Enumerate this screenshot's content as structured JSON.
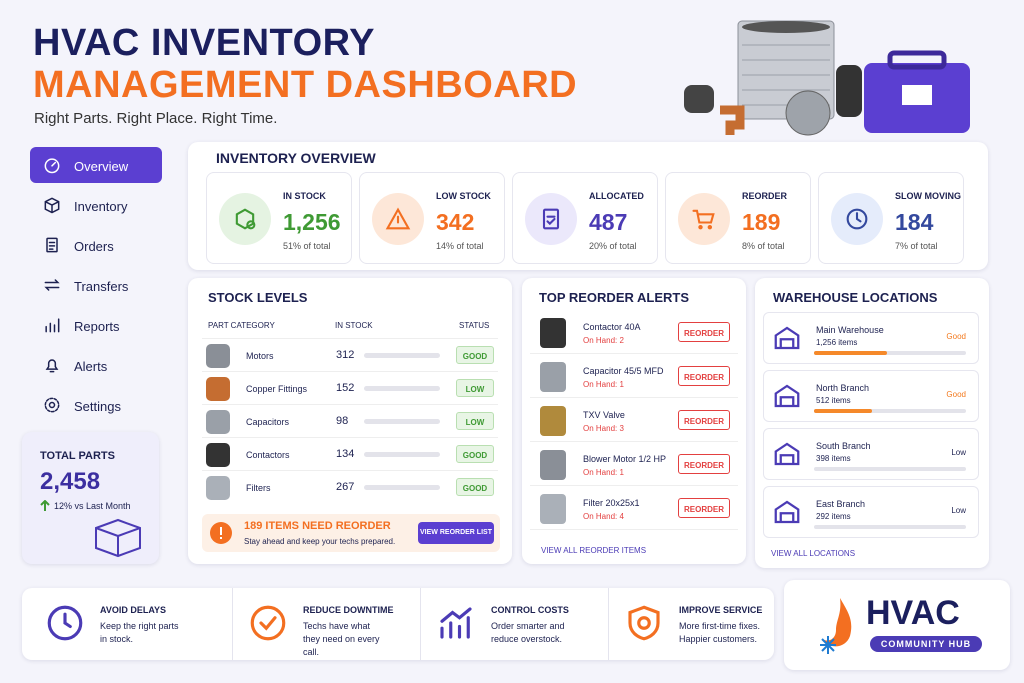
{
  "header": {
    "title_line1": "HVAC INVENTORY",
    "title_line2": "MANAGEMENT DASHBOARD",
    "tagline": "Right Parts. Right Place. Right Time."
  },
  "sidebar": {
    "nav": [
      "Overview",
      "Inventory",
      "Orders",
      "Transfers",
      "Reports",
      "Alerts",
      "Settings"
    ],
    "total_parts": {
      "label": "TOTAL PARTS",
      "value": "2,458",
      "change": "12% vs Last Month"
    }
  },
  "overview": {
    "title": "INVENTORY OVERVIEW",
    "cards": [
      {
        "label": "IN STOCK",
        "value": "1,256",
        "note": "51% of total"
      },
      {
        "label": "LOW STOCK",
        "value": "342",
        "note": "14% of total"
      },
      {
        "label": "ALLOCATED",
        "value": "487",
        "note": "20% of total"
      },
      {
        "label": "REORDER",
        "value": "189",
        "note": "8% of total"
      },
      {
        "label": "SLOW MOVING",
        "value": "184",
        "note": "7% of total"
      }
    ]
  },
  "stock_levels": {
    "title": "STOCK LEVELS",
    "headers": [
      "PART CATEGORY",
      "IN STOCK",
      "STATUS"
    ],
    "rows": [
      {
        "name": "Motors",
        "qty": "312",
        "status": "GOOD"
      },
      {
        "name": "Copper Fittings",
        "qty": "152",
        "status": "LOW"
      },
      {
        "name": "Capacitors",
        "qty": "98",
        "status": "LOW"
      },
      {
        "name": "Contactors",
        "qty": "134",
        "status": "GOOD"
      },
      {
        "name": "Filters",
        "qty": "267",
        "status": "GOOD"
      }
    ],
    "alert": {
      "title": "189 ITEMS NEED REORDER",
      "text": "Stay ahead and keep your techs prepared.",
      "button": "VIEW REORDER LIST"
    }
  },
  "reorder_alerts": {
    "title": "TOP REORDER ALERTS",
    "items": [
      {
        "name": "Contactor 40A",
        "on_hand": "On Hand: 2",
        "button": "REORDER"
      },
      {
        "name": "Capacitor 45/5 MFD",
        "on_hand": "On Hand: 1",
        "button": "REORDER"
      },
      {
        "name": "TXV Valve",
        "on_hand": "On Hand: 3",
        "button": "REORDER"
      },
      {
        "name": "Blower Motor 1/2 HP",
        "on_hand": "On Hand: 1",
        "button": "REORDER"
      },
      {
        "name": "Filter 20x25x1",
        "on_hand": "On Hand: 4",
        "button": "REORDER"
      }
    ],
    "footer": "VIEW ALL REORDER ITEMS"
  },
  "warehouses": {
    "title": "WAREHOUSE LOCATIONS",
    "items": [
      {
        "name": "Main Warehouse",
        "items": "1,256 items",
        "status": "Good"
      },
      {
        "name": "North Branch",
        "items": "512 items",
        "status": "Good"
      },
      {
        "name": "South Branch",
        "items": "398 items",
        "status": "Low"
      },
      {
        "name": "East Branch",
        "items": "292 items",
        "status": "Low"
      }
    ],
    "footer": "VIEW ALL LOCATIONS"
  },
  "benefits": [
    {
      "title": "AVOID DELAYS",
      "text": "Keep the right parts in stock."
    },
    {
      "title": "REDUCE DOWNTIME",
      "text": "Techs have what they need on every call."
    },
    {
      "title": "CONTROL COSTS",
      "text": "Order smarter and reduce overstock."
    },
    {
      "title": "IMPROVE SERVICE",
      "text": "More first-time fixes. Happier customers."
    }
  ],
  "logo": {
    "name": "HVAC",
    "tagline": "COMMUNITY HUB"
  }
}
